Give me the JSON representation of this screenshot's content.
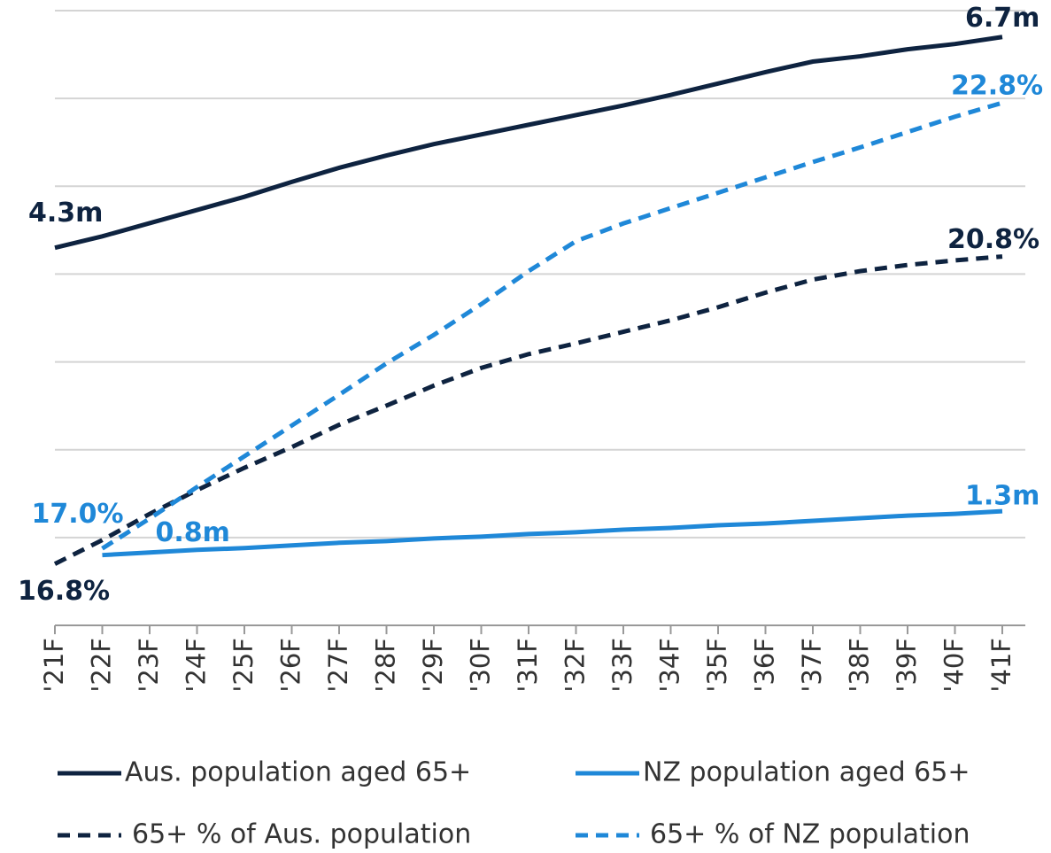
{
  "chart_data": {
    "type": "line",
    "categories": [
      "'21F",
      "'22F",
      "'23F",
      "'24F",
      "'25F",
      "'26F",
      "'27F",
      "'28F",
      "'29F",
      "'30F",
      "'31F",
      "'32F",
      "'33F",
      "'34F",
      "'35F",
      "'36F",
      "'37F",
      "'38F",
      "'39F",
      "'40F",
      "'41F"
    ],
    "ylim": [
      0,
      7
    ],
    "yticks": [
      0,
      1,
      2,
      3,
      4,
      5,
      6,
      7
    ],
    "y2lim": [
      16,
      24
    ],
    "grid": true,
    "series": [
      {
        "name": "Aus. population aged 65+",
        "color": "#0e2340",
        "dash": false,
        "values": [
          4.3,
          4.43,
          4.58,
          4.73,
          4.88,
          5.05,
          5.21,
          5.35,
          5.48,
          5.59,
          5.7,
          5.81,
          5.92,
          6.04,
          6.17,
          6.3,
          6.42,
          6.48,
          6.56,
          6.62,
          6.7
        ],
        "value_labels": [
          "4.3m",
          null,
          null,
          null,
          null,
          null,
          null,
          null,
          null,
          null,
          null,
          null,
          null,
          null,
          null,
          null,
          null,
          null,
          null,
          null,
          "6.7m"
        ]
      },
      {
        "name": "NZ population aged 65+",
        "color": "#1f88d8",
        "dash": false,
        "values": [
          null,
          0.8,
          0.83,
          0.86,
          0.88,
          0.91,
          0.94,
          0.96,
          0.99,
          1.01,
          1.04,
          1.06,
          1.09,
          1.11,
          1.14,
          1.16,
          1.19,
          1.22,
          1.25,
          1.27,
          1.3
        ],
        "value_labels": [
          null,
          "0.8m",
          null,
          null,
          null,
          null,
          null,
          null,
          null,
          null,
          null,
          null,
          null,
          null,
          null,
          null,
          null,
          null,
          null,
          null,
          "1.3m"
        ]
      },
      {
        "name": "65+ % of Aus. population",
        "color": "#0e2340",
        "dash": true,
        "axis": "y2",
        "values": [
          16.8,
          17.11,
          17.45,
          17.76,
          18.05,
          18.32,
          18.61,
          18.86,
          19.12,
          19.35,
          19.53,
          19.67,
          19.82,
          19.97,
          20.14,
          20.33,
          20.5,
          20.61,
          20.69,
          20.75,
          20.8
        ],
        "value_labels": [
          "16.8%",
          null,
          null,
          null,
          null,
          null,
          null,
          null,
          null,
          null,
          null,
          null,
          null,
          null,
          null,
          null,
          null,
          null,
          null,
          null,
          "20.8%"
        ]
      },
      {
        "name": "65+ % of NZ population",
        "color": "#1f88d8",
        "dash": true,
        "axis": "y2",
        "values": [
          null,
          17.0,
          17.39,
          17.8,
          18.2,
          18.6,
          19.0,
          19.41,
          19.78,
          20.18,
          20.61,
          21.0,
          21.23,
          21.43,
          21.63,
          21.83,
          22.03,
          22.22,
          22.42,
          22.62,
          22.8
        ],
        "value_labels": [
          null,
          "17.0%",
          null,
          null,
          null,
          null,
          null,
          null,
          null,
          null,
          null,
          null,
          null,
          null,
          null,
          null,
          null,
          null,
          null,
          null,
          "22.8%"
        ]
      }
    ]
  }
}
